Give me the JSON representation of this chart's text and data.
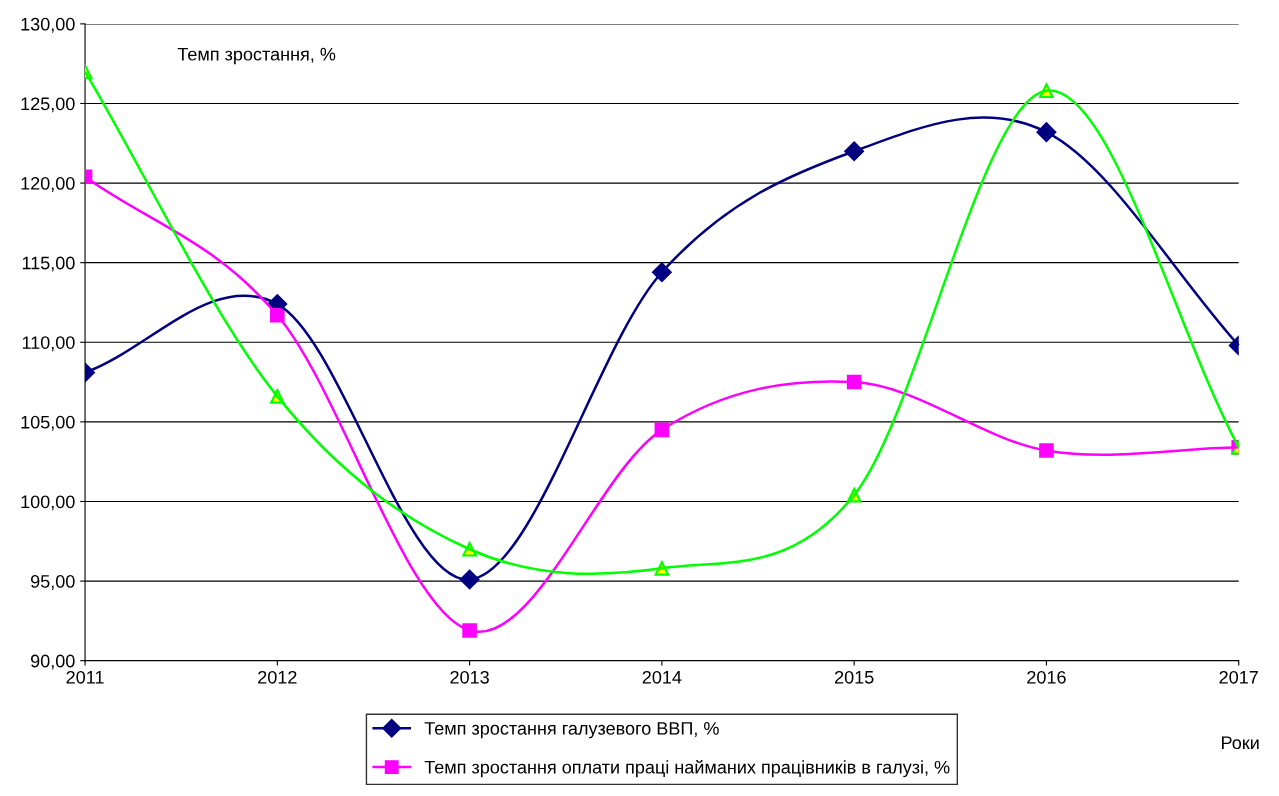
{
  "chart_data": {
    "type": "line",
    "ylabel": "Темп зростання, %",
    "xlabel": "Роки",
    "x": [
      2011,
      2012,
      2013,
      2014,
      2015,
      2016,
      2017
    ],
    "series": [
      {
        "name": "Темп зростання галузевого ВВП, %",
        "color": "#000080",
        "marker": "diamond",
        "values": [
          108.1,
          112.4,
          95.1,
          114.4,
          122.0,
          123.2,
          109.8
        ]
      },
      {
        "name": "Темп зростання оплати праці найманих працівників в галузі, %",
        "color": "#ff00ff",
        "marker": "square",
        "values": [
          120.4,
          111.7,
          91.9,
          104.5,
          107.5,
          103.2,
          103.4
        ]
      },
      {
        "color": "#00ff00",
        "marker": "triangle",
        "values": [
          127.0,
          106.6,
          97.0,
          95.8,
          100.4,
          125.8,
          103.4
        ]
      }
    ],
    "xlim": [
      2011,
      2017
    ],
    "xticks": [
      2011,
      2012,
      2013,
      2014,
      2015,
      2016,
      2017
    ],
    "ylim": [
      90,
      130
    ],
    "yticks": [
      {
        "value": 90,
        "label": "90,00"
      },
      {
        "value": 95,
        "label": "95,00"
      },
      {
        "value": 100,
        "label": "100,00"
      },
      {
        "value": 105,
        "label": "105,00"
      },
      {
        "value": 110,
        "label": "110,00"
      },
      {
        "value": 115,
        "label": "115,00"
      },
      {
        "value": 120,
        "label": "120,00"
      },
      {
        "value": 125,
        "label": "125,00"
      },
      {
        "value": 130,
        "label": "130,00"
      }
    ],
    "grid": "y",
    "legend": "bottom",
    "line_style": "solid"
  }
}
